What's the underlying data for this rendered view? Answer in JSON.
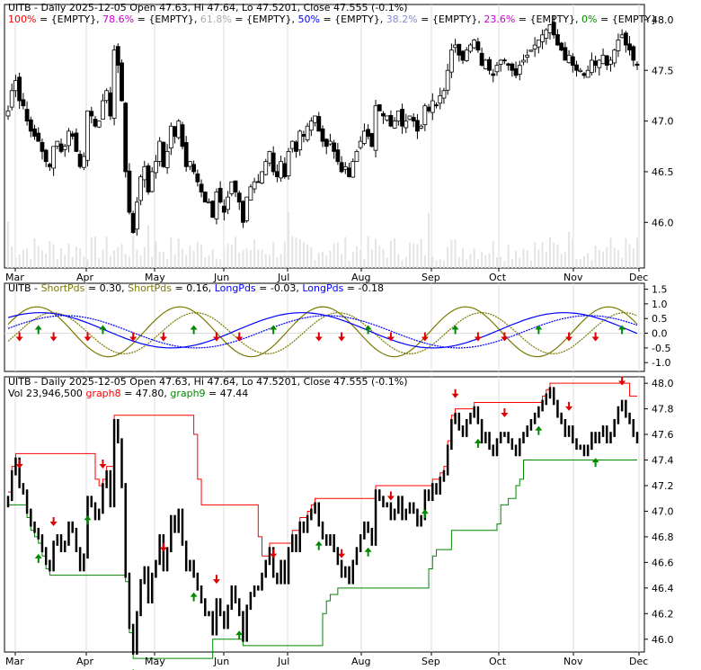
{
  "colors": {
    "background": "#ffffff",
    "frame": "#000000",
    "grid": "#dddddd",
    "candle_up": "#ffffff",
    "candle_down": "#000000",
    "volume": "#e4e4e4",
    "fib_100": "#ff0000",
    "fib_786": "#cc00cc",
    "fib_618": "#aaaaaa",
    "fib_50": "#0000ff",
    "fib_382": "#8888cc",
    "fib_236": "#cc00cc",
    "fib_0": "#008800",
    "short_fast": "#7a7a00",
    "short_slow": "#7a7a00",
    "long_fast": "#0000ff",
    "long_slow": "#0000ff",
    "arrow_up": "#008800",
    "arrow_down": "#dd0000",
    "graph8": "#ff0000",
    "graph9": "#008800"
  },
  "panel1": {
    "title": "UITB - Daily 2025-12-05 Open 47.63, Hi 47.64, Lo 47.5201, Close 47.555 (-0.1%)",
    "legend": [
      {
        "text": "100%",
        "color_key": "fib_100"
      },
      {
        "text": " = {EMPTY}, ",
        "color_key": "frame"
      },
      {
        "text": "78.6%",
        "color_key": "fib_786"
      },
      {
        "text": " = {EMPTY}, ",
        "color_key": "frame"
      },
      {
        "text": "61.8%",
        "color_key": "fib_618"
      },
      {
        "text": " = {EMPTY}, ",
        "color_key": "frame"
      },
      {
        "text": "50%",
        "color_key": "fib_50"
      },
      {
        "text": " = {EMPTY}, ",
        "color_key": "frame"
      },
      {
        "text": "38.2%",
        "color_key": "fib_382"
      },
      {
        "text": " = {EMPTY}, ",
        "color_key": "frame"
      },
      {
        "text": "23.6%",
        "color_key": "fib_236"
      },
      {
        "text": " = {EMPTY}, ",
        "color_key": "frame"
      },
      {
        "text": "0%",
        "color_key": "fib_0"
      },
      {
        "text": " = {EMPTY}",
        "color_key": "frame"
      }
    ],
    "y_ticks": [
      "48.0",
      "47.5",
      "47.0",
      "46.5",
      "46.0"
    ]
  },
  "panel2": {
    "legend": [
      {
        "text": "UITB - ",
        "color_key": "frame"
      },
      {
        "text": "ShortPds",
        "color_key": "short_fast"
      },
      {
        "text": " = 0.30, ",
        "color_key": "frame"
      },
      {
        "text": "ShortPds",
        "color_key": "short_slow"
      },
      {
        "text": " = 0.16, ",
        "color_key": "frame"
      },
      {
        "text": "LongPds",
        "color_key": "long_fast"
      },
      {
        "text": " = -0.03, ",
        "color_key": "frame"
      },
      {
        "text": "LongPds",
        "color_key": "long_slow"
      },
      {
        "text": " = -0.18",
        "color_key": "frame"
      }
    ],
    "y_ticks": [
      "1.5",
      "1.0",
      "0.5",
      "0.0",
      "-0.5",
      "-1.0"
    ]
  },
  "panel3": {
    "title": "UITB - Daily 2025-12-05 Open 47.63, Hi 47.64, Lo 47.5201, Close 47.555 (-0.1%)",
    "legend": [
      {
        "text": "Vol 23,946,500 ",
        "color_key": "frame"
      },
      {
        "text": "graph8",
        "color_key": "graph8"
      },
      {
        "text": " = 47.80, ",
        "color_key": "frame"
      },
      {
        "text": "graph9",
        "color_key": "graph9"
      },
      {
        "text": " = 47.44",
        "color_key": "frame"
      }
    ],
    "y_ticks": [
      "48.0",
      "47.8",
      "47.6",
      "47.4",
      "47.2",
      "47.0",
      "46.8",
      "46.6",
      "46.4",
      "46.2",
      "46.0"
    ]
  },
  "x_months": [
    "Mar",
    "Apr",
    "May",
    "Jun",
    "Jul",
    "Aug",
    "Sep",
    "Oct",
    "Nov",
    "Dec"
  ],
  "chart_data": [
    {
      "type": "candlestick",
      "title": "UITB - Daily 2025-12-05 Open 47.63, Hi 47.64, Lo 47.5201, Close 47.555 (-0.1%)",
      "x_months": [
        "Mar",
        "Apr",
        "May",
        "Jun",
        "Jul",
        "Aug",
        "Sep",
        "Oct",
        "Nov",
        "Dec"
      ],
      "ylim": [
        45.55,
        48.15
      ],
      "y_ticks": [
        48.0,
        47.5,
        47.0,
        46.5,
        46.0
      ],
      "close_series": [
        47.1,
        47.3,
        47.4,
        47.2,
        47.15,
        47.0,
        46.9,
        46.85,
        46.8,
        46.7,
        46.6,
        46.55,
        46.75,
        46.8,
        46.7,
        46.75,
        46.9,
        46.85,
        46.7,
        46.55,
        46.65,
        47.1,
        47.05,
        46.95,
        47.0,
        47.2,
        47.3,
        47.05,
        47.7,
        47.55,
        47.2,
        46.5,
        46.1,
        45.9,
        46.2,
        46.45,
        46.55,
        46.3,
        46.5,
        46.6,
        46.8,
        46.55,
        46.7,
        46.95,
        46.85,
        47.0,
        46.75,
        46.55,
        46.6,
        46.5,
        46.4,
        46.3,
        46.2,
        46.2,
        46.05,
        46.3,
        46.2,
        46.1,
        46.25,
        46.4,
        46.3,
        46.2,
        46.0,
        46.25,
        46.35,
        46.4,
        46.4,
        46.5,
        46.6,
        46.7,
        46.5,
        46.45,
        46.6,
        46.45,
        46.7,
        46.8,
        46.7,
        46.9,
        46.85,
        46.95,
        47.0,
        47.05,
        46.9,
        46.8,
        46.75,
        46.8,
        46.7,
        46.6,
        46.5,
        46.55,
        46.45,
        46.6,
        46.7,
        46.8,
        46.9,
        46.85,
        46.75,
        47.15,
        47.1,
        47.05,
        47.05,
        46.95,
        47.0,
        47.1,
        46.95,
        47.0,
        47.05,
        47.0,
        46.9,
        46.95,
        47.15,
        47.1,
        47.2,
        47.15,
        47.25,
        47.3,
        47.5,
        47.7,
        47.75,
        47.65,
        47.6,
        47.7,
        47.75,
        47.8,
        47.7,
        47.55,
        47.6,
        47.5,
        47.45,
        47.55,
        47.6,
        47.6,
        47.55,
        47.5,
        47.45,
        47.55,
        47.6,
        47.65,
        47.7,
        47.75,
        47.8,
        47.85,
        47.9,
        47.95,
        47.85,
        47.75,
        47.7,
        47.6,
        47.65,
        47.55,
        47.5,
        47.5,
        47.45,
        47.5,
        47.6,
        47.55,
        47.6,
        47.65,
        47.55,
        47.6,
        47.7,
        47.8,
        47.85,
        47.75,
        47.7,
        47.6,
        47.55
      ]
    },
    {
      "type": "line",
      "title": "",
      "ylim": [
        -1.3,
        1.7
      ],
      "y_ticks": [
        1.5,
        1.0,
        0.5,
        0.0,
        -0.5,
        -1.0
      ],
      "series": [
        {
          "name": "ShortPds",
          "last": 0.3
        },
        {
          "name": "ShortPds",
          "last": 0.16
        },
        {
          "name": "LongPds",
          "last": -0.03
        },
        {
          "name": "LongPds",
          "last": -0.18
        }
      ]
    },
    {
      "type": "line",
      "title": "UITB - Daily 2025-12-05 Open 47.63, Hi 47.64, Lo 47.5201, Close 47.555 (-0.1%)",
      "ylim": [
        45.9,
        48.05
      ],
      "y_ticks": [
        48.0,
        47.8,
        47.6,
        47.4,
        47.2,
        47.0,
        46.8,
        46.6,
        46.4,
        46.2,
        46.0
      ],
      "series": [
        {
          "name": "graph8",
          "last": 47.8
        },
        {
          "name": "graph9",
          "last": 47.44
        }
      ],
      "volume_last": "23,946,500"
    }
  ]
}
